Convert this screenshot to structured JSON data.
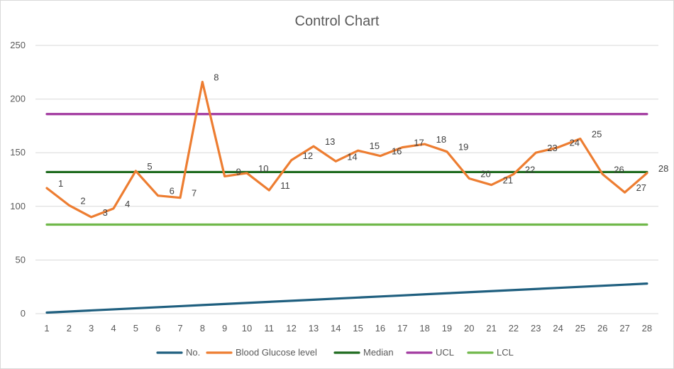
{
  "chart_data": {
    "type": "line",
    "title": "Control Chart",
    "xlabel": "",
    "ylabel": "",
    "ylim": [
      0,
      250
    ],
    "yticks": [
      0,
      50,
      100,
      150,
      200,
      250
    ],
    "grid": true,
    "legend_position": "bottom",
    "categories": [
      "1",
      "2",
      "3",
      "4",
      "5",
      "6",
      "7",
      "8",
      "9",
      "10",
      "11",
      "12",
      "13",
      "14",
      "15",
      "16",
      "17",
      "18",
      "19",
      "20",
      "21",
      "22",
      "23",
      "24",
      "25",
      "26",
      "27",
      "28"
    ],
    "series": [
      {
        "name": "No.",
        "color": "#1f5f7f",
        "values": [
          1,
          2,
          3,
          4,
          5,
          6,
          7,
          8,
          9,
          10,
          11,
          12,
          13,
          14,
          15,
          16,
          17,
          18,
          19,
          20,
          21,
          22,
          23,
          24,
          25,
          26,
          27,
          28
        ]
      },
      {
        "name": "Blood Glucose level",
        "color": "#ed7d31",
        "values": [
          117,
          101,
          90,
          98,
          133,
          110,
          108,
          216,
          128,
          131,
          115,
          143,
          156,
          142,
          152,
          147,
          155,
          158,
          151,
          126,
          120,
          130,
          150,
          155,
          163,
          130,
          113,
          131
        ],
        "data_labels": [
          "1",
          "2",
          "3",
          "4",
          "5",
          "6",
          "7",
          "8",
          "9",
          "10",
          "11",
          "12",
          "13",
          "14",
          "15",
          "16",
          "17",
          "18",
          "19",
          "20",
          "21",
          "22",
          "23",
          "24",
          "25",
          "26",
          "27",
          "28"
        ]
      },
      {
        "name": "Median",
        "color": "#1e6b1e",
        "values": [
          132,
          132,
          132,
          132,
          132,
          132,
          132,
          132,
          132,
          132,
          132,
          132,
          132,
          132,
          132,
          132,
          132,
          132,
          132,
          132,
          132,
          132,
          132,
          132,
          132,
          132,
          132,
          132
        ]
      },
      {
        "name": "UCL",
        "color": "#a23aa0",
        "values": [
          186,
          186,
          186,
          186,
          186,
          186,
          186,
          186,
          186,
          186,
          186,
          186,
          186,
          186,
          186,
          186,
          186,
          186,
          186,
          186,
          186,
          186,
          186,
          186,
          186,
          186,
          186,
          186
        ]
      },
      {
        "name": "LCL",
        "color": "#70b84a",
        "values": [
          83,
          83,
          83,
          83,
          83,
          83,
          83,
          83,
          83,
          83,
          83,
          83,
          83,
          83,
          83,
          83,
          83,
          83,
          83,
          83,
          83,
          83,
          83,
          83,
          83,
          83,
          83,
          83
        ]
      }
    ]
  }
}
